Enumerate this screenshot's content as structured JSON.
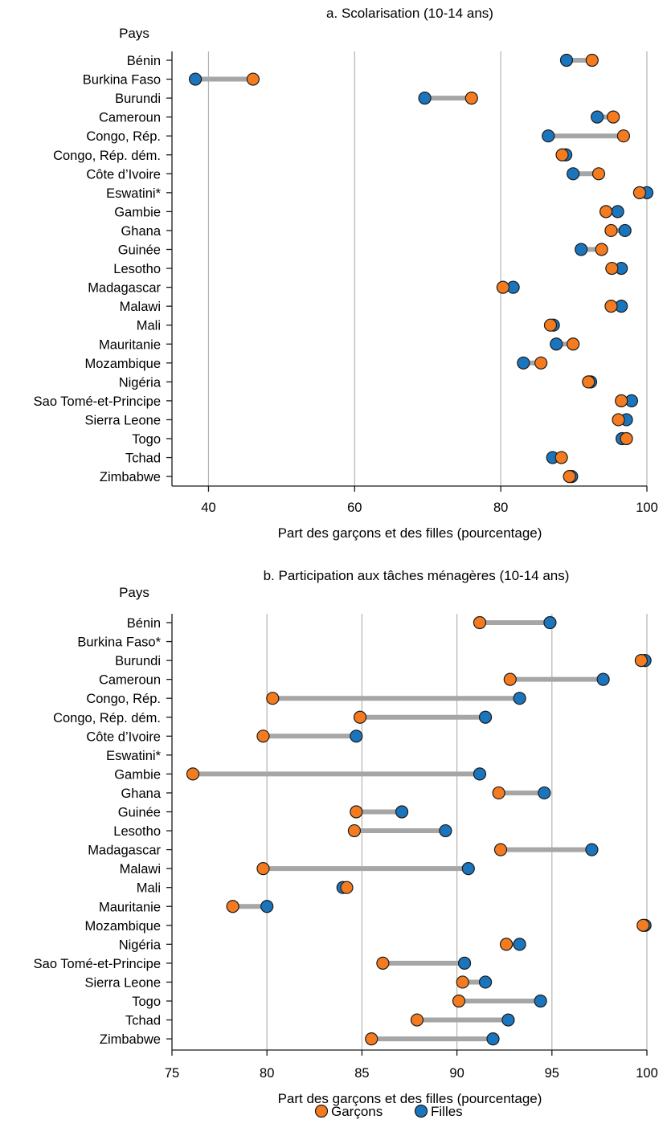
{
  "colors": {
    "garcons": "#f47b20",
    "filles": "#1b75bc",
    "connector": "#a6a6a6",
    "grid": "#b3b3b3"
  },
  "legend": {
    "garcons": "Garçons",
    "filles": "Filles"
  },
  "chart_data": [
    {
      "type": "dumbbell",
      "title": "a. Scolarisation (10-14 ans)",
      "ylabel": "Pays",
      "xlabel": "Part des garçons et des filles (pourcentage)",
      "xlim": [
        35,
        100
      ],
      "xticks": [
        40,
        60,
        80,
        100
      ],
      "grid": true,
      "categories": [
        "Bénin",
        "Burkina Faso",
        "Burundi",
        "Cameroun",
        "Congo, Rép.",
        "Congo, Rép. dém.",
        "Côte d’Ivoire",
        "Eswatini*",
        "Gambie",
        "Ghana",
        "Guinée",
        "Lesotho",
        "Madagascar",
        "Malawi",
        "Mali",
        "Mauritanie",
        "Mozambique",
        "Nigéria",
        "Sao Tomé-et-Principe",
        "Sierra Leone",
        "Togo",
        "Tchad",
        "Zimbabwe"
      ],
      "series": [
        {
          "name": "Garçons",
          "values": [
            92.5,
            46.1,
            76.0,
            95.4,
            96.8,
            88.4,
            93.4,
            99.0,
            94.4,
            95.1,
            93.8,
            95.2,
            80.3,
            95.1,
            86.8,
            89.9,
            85.5,
            92.0,
            96.5,
            96.1,
            97.2,
            88.3,
            89.4
          ]
        },
        {
          "name": "Filles",
          "values": [
            89.0,
            38.2,
            69.6,
            93.2,
            86.5,
            88.9,
            89.9,
            100.0,
            96.0,
            97.0,
            91.0,
            96.5,
            81.7,
            96.5,
            87.2,
            87.6,
            83.1,
            92.3,
            97.9,
            97.2,
            96.6,
            87.1,
            89.7
          ]
        }
      ]
    },
    {
      "type": "dumbbell",
      "title": "b. Participation aux tâches ménagères (10-14 ans)",
      "ylabel": "Pays",
      "xlabel": "Part des garçons et des filles (pourcentage)",
      "xlim": [
        75,
        100
      ],
      "xticks": [
        75,
        80,
        85,
        90,
        95,
        100
      ],
      "grid": true,
      "categories": [
        "Bénin",
        "Burkina Faso*",
        "Burundi",
        "Cameroun",
        "Congo, Rép.",
        "Congo, Rép. dém.",
        "Côte d’Ivoire",
        "Eswatini*",
        "Gambie",
        "Ghana",
        "Guinée",
        "Lesotho",
        "Madagascar",
        "Malawi",
        "Mali",
        "Mauritanie",
        "Mozambique",
        "Nigéria",
        "Sao Tomé-et-Principe",
        "Sierra Leone",
        "Togo",
        "Tchad",
        "Zimbabwe"
      ],
      "series": [
        {
          "name": "Garçons",
          "values": [
            91.2,
            null,
            99.7,
            92.8,
            80.3,
            84.9,
            79.8,
            null,
            76.1,
            92.2,
            84.7,
            84.6,
            92.3,
            79.8,
            84.2,
            78.2,
            99.8,
            92.6,
            86.1,
            90.3,
            90.1,
            87.9,
            85.5
          ]
        },
        {
          "name": "Filles",
          "values": [
            94.9,
            null,
            99.9,
            97.7,
            93.3,
            91.5,
            84.7,
            null,
            91.2,
            94.6,
            87.1,
            89.4,
            97.1,
            90.6,
            84.0,
            80.0,
            99.9,
            93.3,
            90.4,
            91.5,
            94.4,
            92.7,
            91.9
          ]
        }
      ]
    }
  ]
}
